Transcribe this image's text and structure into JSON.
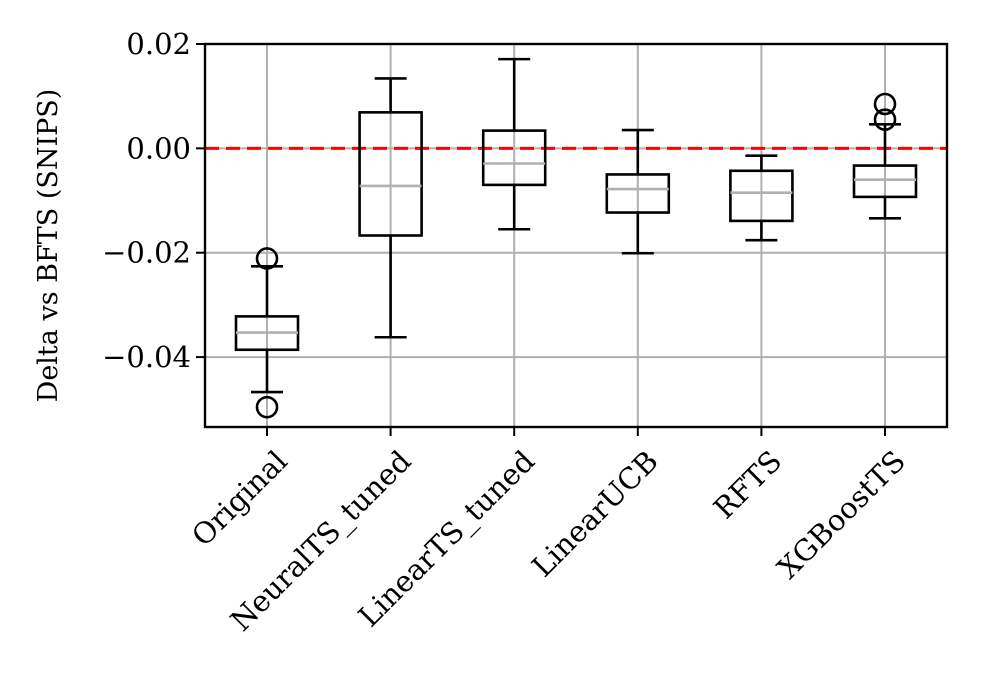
{
  "chart_data": {
    "type": "box",
    "categories": [
      "Original",
      "NeuralTS_tuned",
      "LinearTS_tuned",
      "LinearUCB",
      "RFTS",
      "XGBoostTS"
    ],
    "boxes": [
      {
        "whislo": -0.0467,
        "q1": -0.0386,
        "med": -0.0353,
        "q3": -0.0322,
        "whishi": -0.0226,
        "fliers": [
          -0.0211,
          -0.0496
        ]
      },
      {
        "whislo": -0.0362,
        "q1": -0.0167,
        "med": -0.0072,
        "q3": 0.0069,
        "whishi": 0.0134,
        "fliers": []
      },
      {
        "whislo": -0.0155,
        "q1": -0.007,
        "med": -0.0029,
        "q3": 0.0034,
        "whishi": 0.0171,
        "fliers": []
      },
      {
        "whislo": -0.0201,
        "q1": -0.0123,
        "med": -0.0078,
        "q3": -0.005,
        "whishi": 0.0035,
        "fliers": []
      },
      {
        "whislo": -0.0176,
        "q1": -0.0139,
        "med": -0.0085,
        "q3": -0.0043,
        "whishi": -0.0014,
        "fliers": []
      },
      {
        "whislo": -0.0134,
        "q1": -0.0093,
        "med": -0.006,
        "q3": -0.0033,
        "whishi": 0.0046,
        "fliers": [
          0.0085,
          0.0055
        ]
      }
    ],
    "ylabel": "Delta vs BFTS (SNIPS)",
    "xlabel": "",
    "ylim": [
      -0.0534,
      0.02
    ],
    "yticks": [
      0.02,
      0.0,
      -0.02,
      -0.04
    ],
    "ytick_labels": [
      "0.02",
      "0.00",
      "−0.02",
      "−0.04"
    ],
    "reference_line": {
      "y": 0.0,
      "color": "#ff0000",
      "style": "dashed"
    },
    "grid": true,
    "colors": {
      "box": "#000000",
      "median": "#b0b0b0",
      "grid": "#b0b0b0",
      "reference": "#ff0000"
    }
  }
}
